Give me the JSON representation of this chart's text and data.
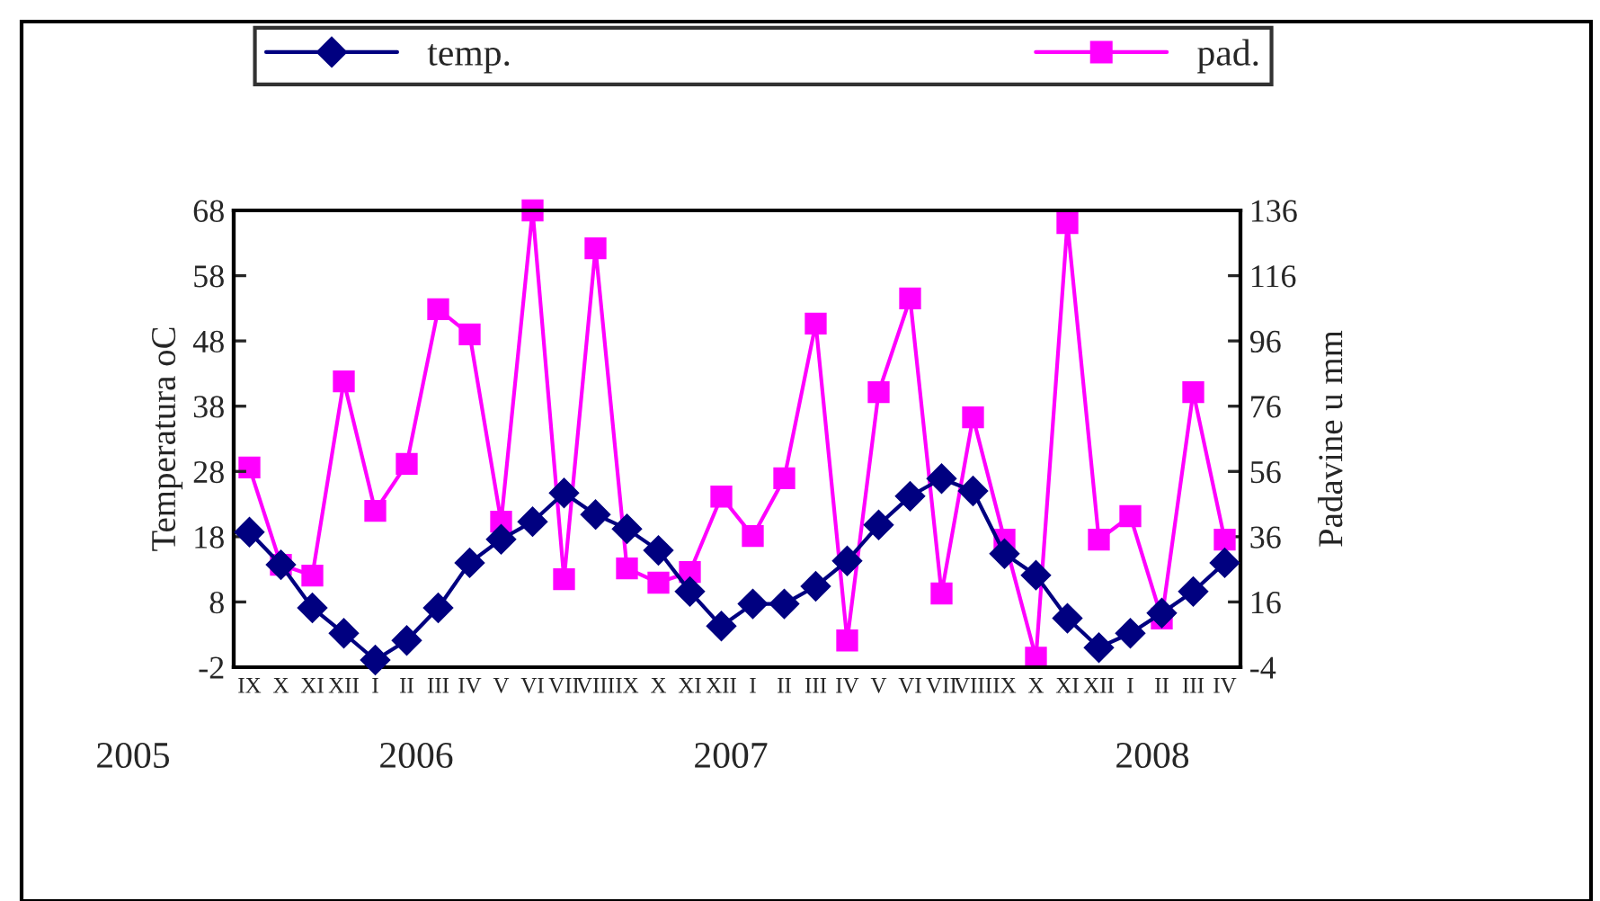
{
  "chart_data": {
    "type": "line",
    "ylabel": "Temperatura oC",
    "y2label": "Padavine u mm",
    "categories": [
      "IX",
      "X",
      "XI",
      "XII",
      "I",
      "II",
      "III",
      "IV",
      "V",
      "VI",
      "VII",
      "VIII",
      "IX",
      "X",
      "XI",
      "XII",
      "I",
      "II",
      "III",
      "IV",
      "V",
      "VI",
      "VII",
      "VIII",
      "IX",
      "X",
      "XI",
      "XII",
      "I",
      "II",
      "III",
      "IV"
    ],
    "series": [
      {
        "name": "temp.",
        "color": "#000080",
        "marker": "diamond",
        "values": [
          18.7,
          13.7,
          7.1,
          3.2,
          -0.9,
          2.1,
          7.1,
          14.0,
          17.6,
          20.3,
          24.7,
          21.4,
          19.2,
          15.9,
          9.6,
          4.3,
          7.7,
          7.7,
          10.4,
          14.3,
          19.8,
          24.2,
          26.9,
          25.0,
          15.4,
          12.1,
          5.5,
          1.0,
          3.2,
          6.3,
          9.6,
          14.0
        ]
      },
      {
        "name": "pad.",
        "color": "#ff00ff",
        "marker": "square",
        "axis": "y2",
        "values": [
          57.2,
          27.4,
          24.1,
          83.6,
          43.9,
          58.3,
          105.7,
          98.0,
          40.6,
          136,
          23.0,
          124.4,
          26.3,
          21.9,
          25.2,
          48.3,
          36.2,
          53.9,
          101.3,
          4.2,
          80.3,
          109.0,
          18.6,
          72.6,
          35.1,
          -1.1,
          132.1,
          35.1,
          42.3,
          10.9,
          80.3,
          35.1
        ]
      }
    ],
    "ylim": [
      -2,
      68
    ],
    "yticks": [
      -2,
      8,
      18,
      28,
      38,
      48,
      58,
      68
    ],
    "y2lim": [
      -4,
      136
    ],
    "y2ticks": [
      -4,
      16,
      36,
      56,
      76,
      96,
      116,
      136
    ],
    "annotations": [
      "2005",
      "2006",
      "2007",
      "2008"
    ],
    "legend": "top",
    "grid": false
  }
}
